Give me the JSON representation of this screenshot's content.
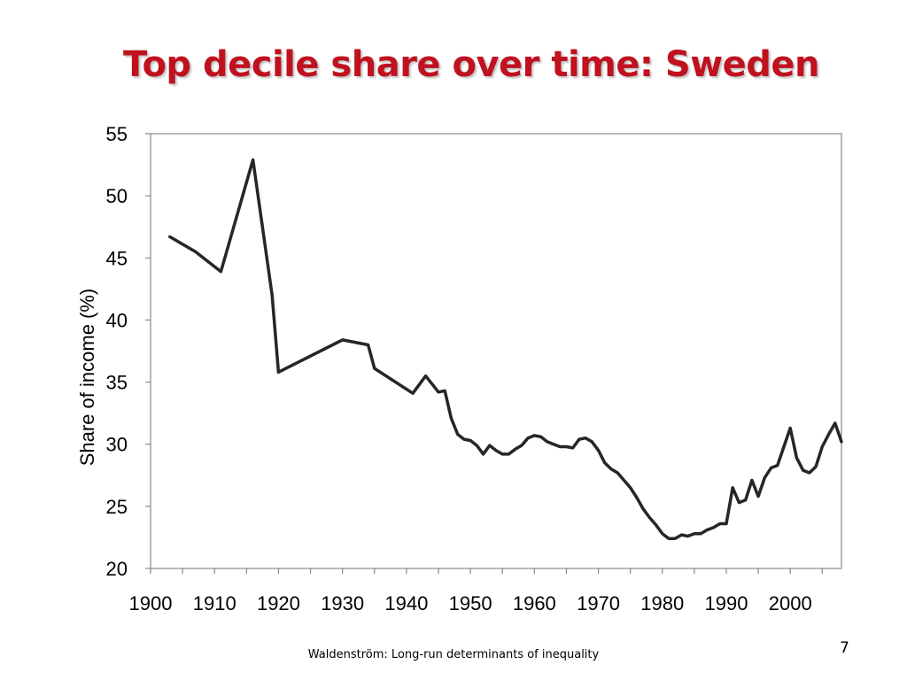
{
  "slide": {
    "title": "Top decile share over time: Sweden",
    "footer": "Waldenström: Long-run determinants of inequality",
    "page_number": "7"
  },
  "colors": {
    "title": "#C0111F",
    "line": "#262626",
    "axes": "#888888"
  },
  "chart_data": {
    "type": "line",
    "title": "",
    "xlabel": "",
    "ylabel": "Share of income (%)",
    "xlim": [
      1900,
      2008
    ],
    "ylim": [
      20,
      55
    ],
    "y_ticks": [
      20,
      25,
      30,
      35,
      40,
      45,
      50,
      55
    ],
    "x_tick_labels": [
      1900,
      1910,
      1920,
      1930,
      1940,
      1950,
      1960,
      1970,
      1980,
      1990,
      2000
    ],
    "grid": false,
    "legend": "none",
    "series": [
      {
        "values": [
          [
            1903,
            46.7
          ],
          [
            1907,
            45.5
          ],
          [
            1911,
            43.9
          ],
          [
            1916,
            52.9
          ],
          [
            1919,
            42.0
          ],
          [
            1920,
            35.8
          ],
          [
            1930,
            38.4
          ],
          [
            1934,
            38.0
          ],
          [
            1935,
            36.1
          ],
          [
            1941,
            34.1
          ],
          [
            1943,
            35.5
          ],
          [
            1945,
            34.2
          ],
          [
            1946,
            34.3
          ],
          [
            1947,
            32.1
          ],
          [
            1948,
            30.8
          ],
          [
            1949,
            30.4
          ],
          [
            1950,
            30.3
          ],
          [
            1951,
            29.9
          ],
          [
            1952,
            29.2
          ],
          [
            1953,
            29.9
          ],
          [
            1954,
            29.5
          ],
          [
            1955,
            29.2
          ],
          [
            1956,
            29.2
          ],
          [
            1957,
            29.6
          ],
          [
            1958,
            29.9
          ],
          [
            1959,
            30.5
          ],
          [
            1960,
            30.7
          ],
          [
            1961,
            30.6
          ],
          [
            1962,
            30.2
          ],
          [
            1963,
            30.0
          ],
          [
            1964,
            29.8
          ],
          [
            1965,
            29.8
          ],
          [
            1966,
            29.7
          ],
          [
            1967,
            30.4
          ],
          [
            1968,
            30.5
          ],
          [
            1969,
            30.2
          ],
          [
            1970,
            29.5
          ],
          [
            1971,
            28.5
          ],
          [
            1972,
            28.0
          ],
          [
            1973,
            27.7
          ],
          [
            1974,
            27.1
          ],
          [
            1975,
            26.5
          ],
          [
            1976,
            25.7
          ],
          [
            1977,
            24.8
          ],
          [
            1978,
            24.1
          ],
          [
            1979,
            23.5
          ],
          [
            1980,
            22.8
          ],
          [
            1981,
            22.4
          ],
          [
            1982,
            22.4
          ],
          [
            1983,
            22.7
          ],
          [
            1984,
            22.6
          ],
          [
            1985,
            22.8
          ],
          [
            1986,
            22.8
          ],
          [
            1987,
            23.1
          ],
          [
            1988,
            23.3
          ],
          [
            1989,
            23.6
          ],
          [
            1990,
            23.6
          ],
          [
            1991,
            26.5
          ],
          [
            1992,
            25.3
          ],
          [
            1993,
            25.5
          ],
          [
            1994,
            27.1
          ],
          [
            1995,
            25.8
          ],
          [
            1996,
            27.3
          ],
          [
            1997,
            28.1
          ],
          [
            1998,
            28.3
          ],
          [
            1999,
            29.8
          ],
          [
            2000,
            31.3
          ],
          [
            2001,
            28.9
          ],
          [
            2002,
            27.9
          ],
          [
            2003,
            27.7
          ],
          [
            2004,
            28.2
          ],
          [
            2005,
            29.8
          ],
          [
            2006,
            30.8
          ],
          [
            2007,
            31.7
          ],
          [
            2008,
            30.2
          ]
        ]
      }
    ]
  }
}
